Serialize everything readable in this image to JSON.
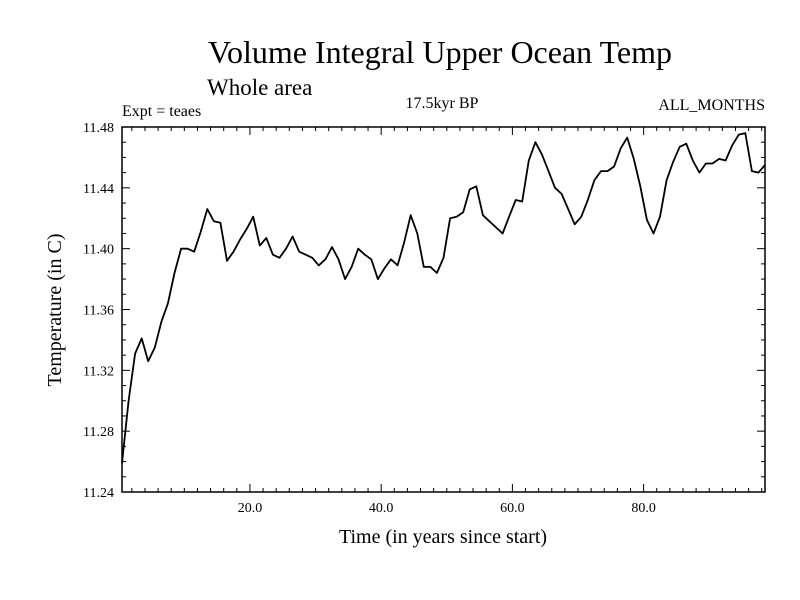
{
  "chart_data": {
    "type": "line",
    "title": "Volume Integral Upper Ocean Temp",
    "subtitle": "Whole area",
    "left_label": "Expt = teaes",
    "center_label": "17.5kyr BP",
    "right_label": "ALL_MONTHS",
    "xlabel": "Time (in years since start)",
    "ylabel": "Temperature (in C)",
    "xlim": [
      0.5,
      98.5
    ],
    "ylim": [
      11.24,
      11.48
    ],
    "x_ticks": [
      20.0,
      40.0,
      60.0,
      80.0
    ],
    "x_tick_labels": [
      "20.0",
      "40.0",
      "60.0",
      "80.0"
    ],
    "y_ticks": [
      11.24,
      11.28,
      11.32,
      11.36,
      11.4,
      11.44,
      11.48
    ],
    "y_tick_labels": [
      "11.24",
      "11.28",
      "11.32",
      "11.36",
      "11.40",
      "11.44",
      "11.48"
    ],
    "series": [
      {
        "name": "Temperature",
        "color": "#000000",
        "x": [
          0.5,
          1.5,
          2.5,
          3.5,
          4.5,
          5.5,
          6.5,
          7.5,
          8.5,
          9.5,
          10.5,
          11.5,
          12.5,
          13.5,
          14.5,
          15.5,
          16.5,
          17.5,
          18.5,
          19.5,
          20.5,
          21.5,
          22.5,
          23.5,
          24.5,
          25.5,
          26.5,
          27.5,
          28.5,
          29.5,
          30.5,
          31.5,
          32.5,
          33.5,
          34.5,
          35.5,
          36.5,
          37.5,
          38.5,
          39.5,
          40.5,
          41.5,
          42.5,
          43.5,
          44.5,
          45.5,
          46.5,
          47.5,
          48.5,
          49.5,
          50.5,
          51.5,
          52.5,
          53.5,
          54.5,
          55.5,
          56.5,
          57.5,
          58.5,
          59.5,
          60.5,
          61.5,
          62.5,
          63.5,
          64.5,
          65.5,
          66.5,
          67.5,
          68.5,
          69.5,
          70.5,
          71.5,
          72.5,
          73.5,
          74.5,
          75.5,
          76.5,
          77.5,
          78.5,
          79.5,
          80.5,
          81.5,
          82.5,
          83.5,
          84.5,
          85.5,
          86.5,
          87.5,
          88.5,
          89.5,
          90.5,
          91.5,
          92.5,
          93.5,
          94.5,
          95.5,
          96.5,
          97.5,
          98.5
        ],
        "values": [
          11.259,
          11.3,
          11.331,
          11.341,
          11.326,
          11.335,
          11.352,
          11.364,
          11.384,
          11.4,
          11.4,
          11.398,
          11.411,
          11.426,
          11.418,
          11.417,
          11.392,
          11.398,
          11.406,
          11.413,
          11.421,
          11.402,
          11.407,
          11.396,
          11.394,
          11.4,
          11.408,
          11.398,
          11.396,
          11.394,
          11.389,
          11.393,
          11.401,
          11.393,
          11.38,
          11.388,
          11.4,
          11.396,
          11.393,
          11.38,
          11.387,
          11.393,
          11.389,
          11.404,
          11.422,
          11.41,
          11.388,
          11.388,
          11.384,
          11.394,
          11.42,
          11.421,
          11.424,
          11.439,
          11.441,
          11.422,
          11.418,
          11.414,
          11.41,
          11.421,
          11.432,
          11.431,
          11.458,
          11.47,
          11.462,
          11.451,
          11.44,
          11.436,
          11.426,
          11.416,
          11.421,
          11.432,
          11.445,
          11.451,
          11.451,
          11.454,
          11.466,
          11.473,
          11.459,
          11.441,
          11.419,
          11.41,
          11.421,
          11.445,
          11.457,
          11.467,
          11.469,
          11.458,
          11.45,
          11.456,
          11.456,
          11.459,
          11.458,
          11.468,
          11.475,
          11.476,
          11.451,
          11.45,
          11.455
        ]
      }
    ]
  }
}
